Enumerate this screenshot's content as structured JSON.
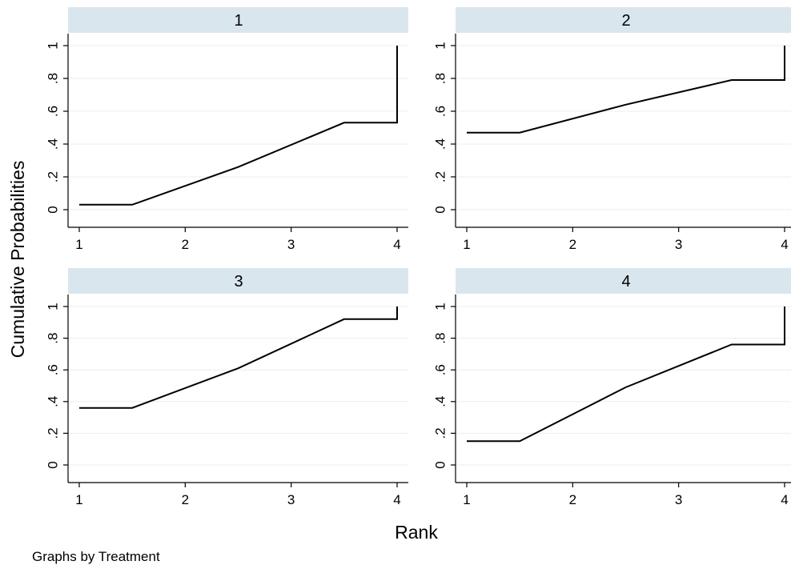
{
  "chart_data": {
    "type": "line",
    "ylabel": "Cumulative Probabilities",
    "xlabel": "Rank",
    "note": "Graphs by Treatment",
    "xlim": [
      1,
      4
    ],
    "ylim": [
      0,
      1
    ],
    "xticks": [
      1,
      2,
      3,
      4
    ],
    "xtick_labels": [
      "1",
      "2",
      "3",
      "4"
    ],
    "yticks": [
      0,
      0.2,
      0.4,
      0.6,
      0.8,
      1
    ],
    "ytick_labels": [
      "0",
      ".2",
      ".4",
      ".6",
      ".8",
      "1"
    ],
    "grid": true,
    "panels": [
      {
        "title": "1",
        "x": [
          1,
          1.5,
          2.5,
          3.5,
          4,
          4
        ],
        "y": [
          0.03,
          0.03,
          0.26,
          0.53,
          0.53,
          1.0
        ]
      },
      {
        "title": "2",
        "x": [
          1,
          1.5,
          2.5,
          3.5,
          4,
          4
        ],
        "y": [
          0.47,
          0.47,
          0.64,
          0.79,
          0.79,
          1.0
        ]
      },
      {
        "title": "3",
        "x": [
          1,
          1.5,
          2.5,
          3.5,
          4,
          4
        ],
        "y": [
          0.36,
          0.36,
          0.61,
          0.92,
          0.92,
          1.0
        ]
      },
      {
        "title": "4",
        "x": [
          1,
          1.5,
          2.5,
          3.5,
          4,
          4
        ],
        "y": [
          0.15,
          0.15,
          0.49,
          0.76,
          0.76,
          1.0
        ]
      }
    ]
  }
}
